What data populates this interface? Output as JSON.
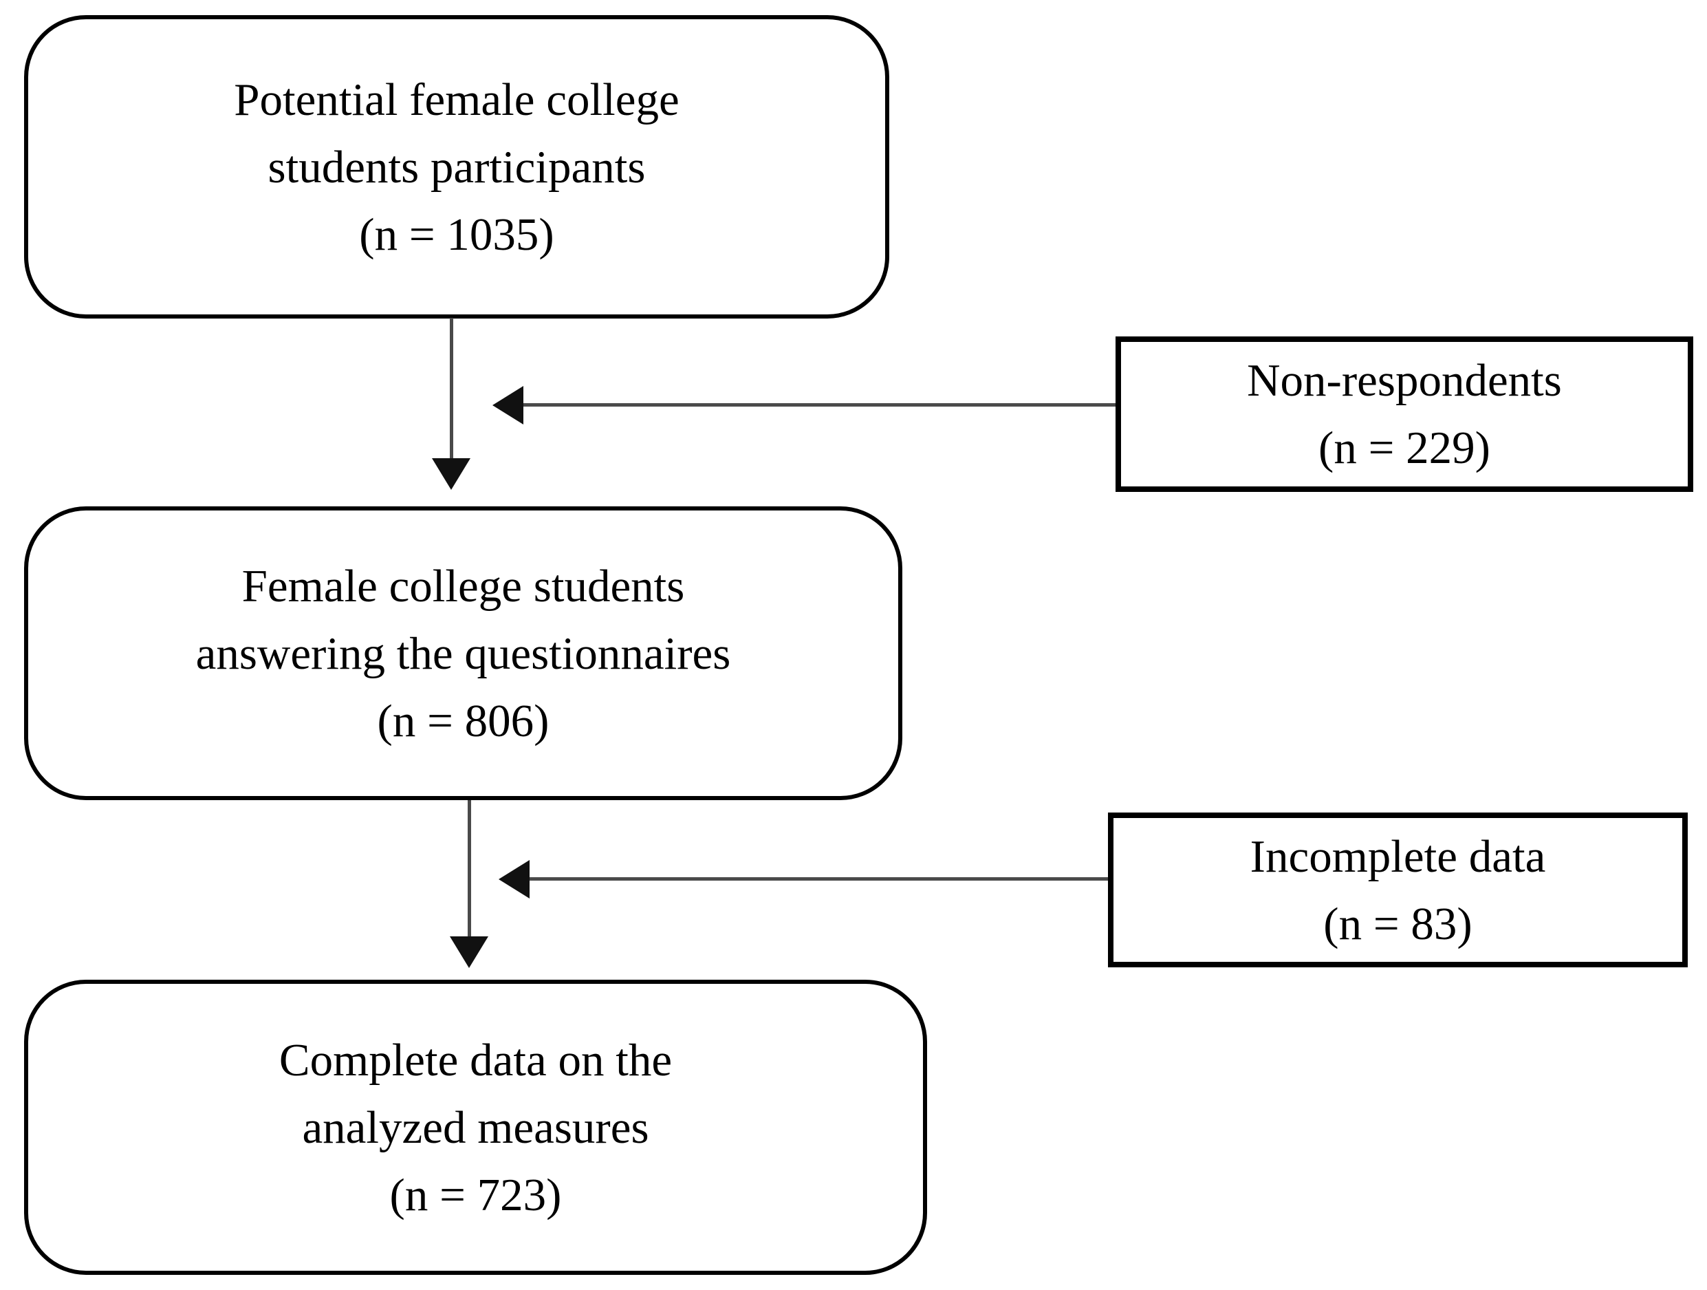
{
  "colors": {
    "background": "#ffffff",
    "box_border": "#000000",
    "text": "#000000",
    "arrow_line": "#4a4a4a",
    "arrow_head": "#111111"
  },
  "boxes": {
    "potential": {
      "lines": [
        "Potential female college",
        "students participants",
        "(n = 1035)"
      ]
    },
    "non_respondents": {
      "lines": [
        "Non-respondents",
        "(n = 229)"
      ]
    },
    "answering": {
      "lines": [
        "Female college students",
        "answering the questionnaires",
        "(n = 806)"
      ]
    },
    "incomplete": {
      "lines": [
        "Incomplete data",
        "(n = 83)"
      ]
    },
    "complete": {
      "lines": [
        "Complete data on the",
        "analyzed measures",
        "(n = 723)"
      ]
    }
  },
  "arrows": [
    {
      "name": "potential-to-answering",
      "direction": "down"
    },
    {
      "name": "non-respondents-exclusion",
      "direction": "left"
    },
    {
      "name": "answering-to-complete",
      "direction": "down"
    },
    {
      "name": "incomplete-data-exclusion",
      "direction": "left"
    }
  ]
}
